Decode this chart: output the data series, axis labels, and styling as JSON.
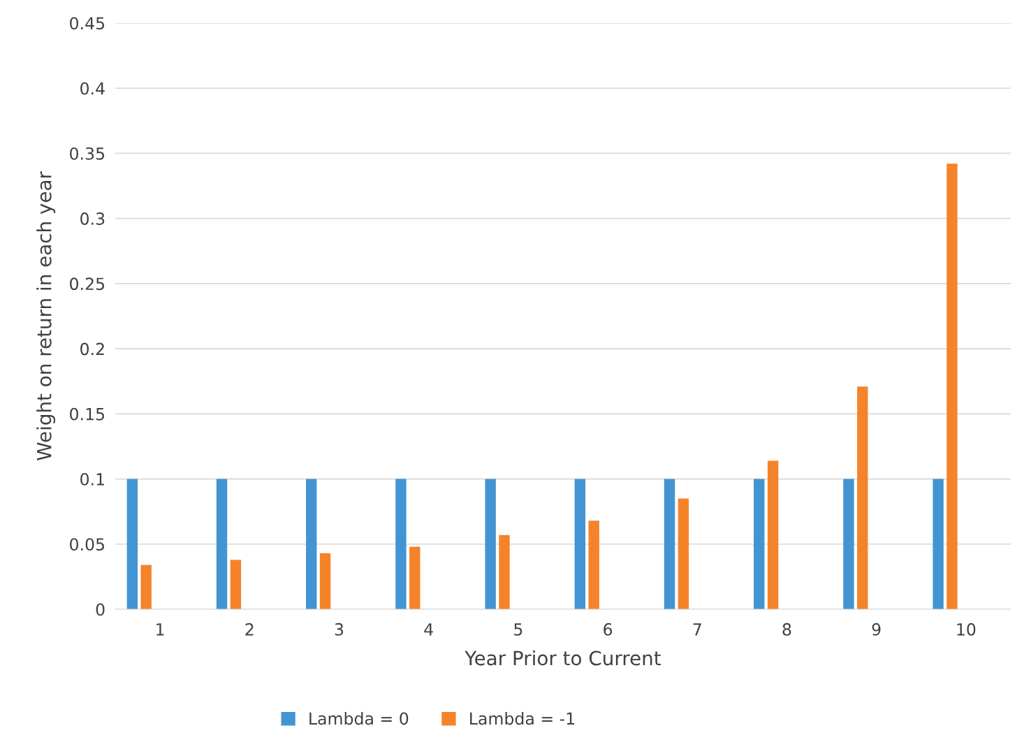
{
  "chart_data": {
    "type": "bar",
    "xlabel": "Year Prior to Current",
    "ylabel": "Weight on return in each year",
    "categories": [
      "1",
      "2",
      "3",
      "4",
      "5",
      "6",
      "7",
      "8",
      "9",
      "10"
    ],
    "series": [
      {
        "name": "Lambda = 0",
        "color": "#4394d2",
        "values": [
          0.1,
          0.1,
          0.1,
          0.1,
          0.1,
          0.1,
          0.1,
          0.1,
          0.1,
          0.1
        ]
      },
      {
        "name": "Lambda = -1",
        "color": "#f5832a",
        "values": [
          0.034,
          0.038,
          0.043,
          0.048,
          0.057,
          0.068,
          0.085,
          0.114,
          0.171,
          0.342
        ]
      }
    ],
    "ylim": [
      0,
      0.45
    ],
    "yticks": [
      0,
      0.05,
      0.1,
      0.15,
      0.2,
      0.25,
      0.3,
      0.35,
      0.4,
      0.45
    ],
    "grid": "y",
    "legend": "bottom"
  }
}
